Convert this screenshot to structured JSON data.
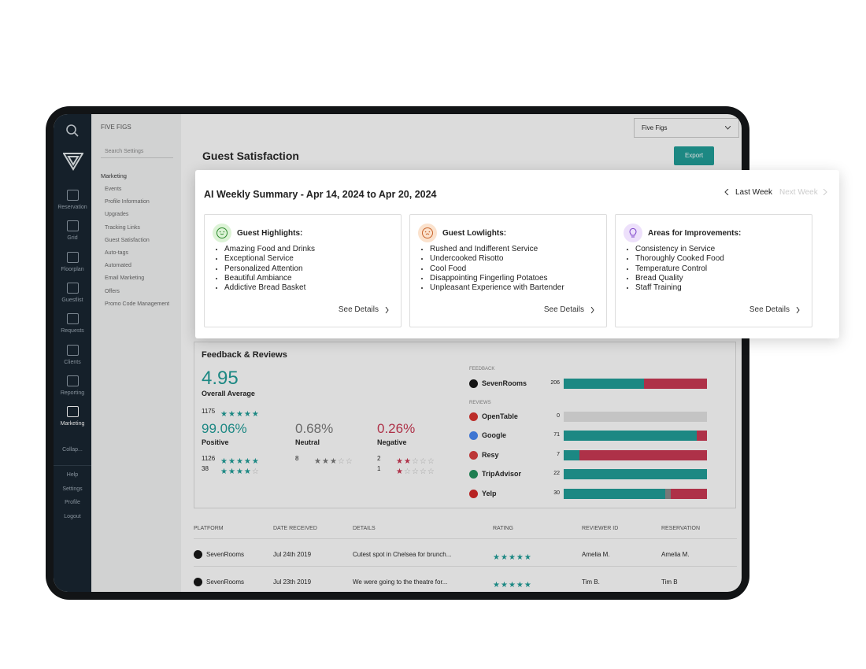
{
  "sidebar": {
    "nav": [
      "Reservation",
      "Grid",
      "Floorplan",
      "Guestlist",
      "Requests",
      "Clients",
      "Reporting",
      "Marketing"
    ],
    "collapse": "Collap...",
    "footer": [
      "Help",
      "Settings",
      "Profile",
      "Logout"
    ]
  },
  "settings_menu": {
    "venue": "FIVE FIGS",
    "search": "Search Settings",
    "section": "Marketing",
    "items": [
      "Events",
      "Profile Information",
      "Upgrades",
      "Tracking Links",
      "Guest Satisfaction",
      "Auto-tags",
      "Automated",
      "Email Marketing",
      "Offers",
      "Promo Code Management"
    ]
  },
  "header": {
    "venue_select": "Five Figs",
    "title": "Guest Satisfaction",
    "export": "Export"
  },
  "summary": {
    "title": "AI Weekly Summary - Apr 14, 2024 to Apr 20, 2024",
    "prev": "Last Week",
    "next": "Next Week",
    "cards": [
      {
        "title": "Guest Highlights:",
        "items": [
          "Amazing Food and Drinks",
          "Exceptional Service",
          "Personalized Attention",
          "Beautiful Ambiance",
          "Addictive Bread Basket"
        ],
        "link": "See Details"
      },
      {
        "title": "Guest Lowlights:",
        "items": [
          "Rushed and Indifferent Service",
          "Undercooked Risotto",
          "Cool Food",
          "Disappointing Fingerling Potatoes",
          "Unpleasant Experience with Bartender"
        ],
        "link": "See Details"
      },
      {
        "title": "Areas for Improvements:",
        "items": [
          "Consistency in Service",
          "Thoroughly Cooked Food",
          "Temperature Control",
          "Bread Quality",
          "Staff Training"
        ],
        "link": "See Details"
      }
    ]
  },
  "feedback": {
    "title": "Feedback & Reviews",
    "average": 4.95,
    "average_label": "Overall Average",
    "total": {
      "count": 1175,
      "stars": 5
    },
    "groups": [
      {
        "percent": "99.06%",
        "label": "Positive",
        "rows": [
          {
            "count": 1126,
            "stars": 5
          },
          {
            "count": 38,
            "stars": 4
          }
        ]
      },
      {
        "percent": "0.68%",
        "label": "Neutral",
        "rows": [
          {
            "count": 8,
            "stars": 3
          }
        ]
      },
      {
        "percent": "0.26%",
        "label": "Negative",
        "rows": [
          {
            "count": 2,
            "stars": 2
          },
          {
            "count": 1,
            "stars": 1
          }
        ]
      }
    ],
    "feedback_label": "FEEDBACK",
    "reviews_label": "REVIEWS",
    "platforms": [
      {
        "name": "SevenRooms",
        "count": 206,
        "shares": [
          56,
          0,
          44
        ]
      },
      {
        "name": "OpenTable",
        "count": 0,
        "shares": [
          0,
          0,
          0
        ]
      },
      {
        "name": "Google",
        "count": 71,
        "shares": [
          93,
          0,
          7
        ]
      },
      {
        "name": "Resy",
        "count": 7,
        "shares": [
          11,
          0,
          89
        ]
      },
      {
        "name": "TripAdvisor",
        "count": 22,
        "shares": [
          100,
          0,
          0
        ]
      },
      {
        "name": "Yelp",
        "count": 30,
        "shares": [
          71,
          4,
          25
        ]
      }
    ]
  },
  "table": {
    "columns": [
      "PLATFORM",
      "DATE RECEIVED",
      "DETAILS",
      "RATING",
      "REVIEWER ID",
      "RESERVATION"
    ],
    "rows": [
      [
        "SevenRooms",
        "Jul 24th 2019",
        "Cutest spot in Chelsea for brunch...",
        5,
        "Amelia M.",
        "Amelia M."
      ],
      [
        "SevenRooms",
        "Jul 23th 2019",
        "We were going to the theatre for...",
        5,
        "Tim B.",
        "Tim B"
      ]
    ]
  }
}
